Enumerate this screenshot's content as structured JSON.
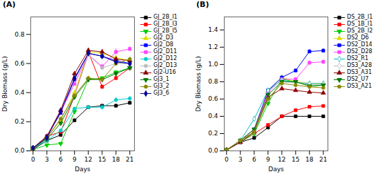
{
  "chart_data": [
    {
      "type": "line",
      "title": "(A)",
      "xlabel": "Days",
      "ylabel": "Dry Biomass (g/L)",
      "x": [
        0,
        3,
        6,
        9,
        12,
        15,
        18,
        21
      ],
      "xlim": [
        -0.5,
        22
      ],
      "xticks": [
        0,
        3,
        6,
        9,
        12,
        15,
        18,
        21
      ],
      "ylim": [
        0,
        0.92
      ],
      "yticks": [
        {
          "value": 0,
          "label": "0.0"
        },
        0.2,
        0.4,
        0.6,
        0.8
      ],
      "grid": false,
      "legend": "right",
      "series": [
        {
          "name": "GJ_2B_I1",
          "color": "#000000",
          "marker": "square",
          "values": [
            0.01,
            0.07,
            0.11,
            0.21,
            0.3,
            0.31,
            0.31,
            0.33
          ],
          "yerr": [
            0.002,
            0.004,
            0.006,
            0.01,
            0.01,
            0.012,
            0.012,
            0.012
          ]
        },
        {
          "name": "GJ_2B_I3",
          "color": "#ff0000",
          "marker": "square",
          "values": [
            0.01,
            0.1,
            0.13,
            0.38,
            0.68,
            0.44,
            0.5,
            0.57
          ],
          "yerr": [
            0.002,
            0.005,
            0.008,
            0.012,
            0.018,
            0.015,
            0.015,
            0.015
          ]
        },
        {
          "name": "GJ_2B_I5",
          "color": "#00cc00",
          "marker": "triangle-down",
          "values": [
            0.01,
            0.04,
            0.05,
            0.27,
            0.49,
            0.5,
            0.54,
            0.57
          ],
          "yerr": [
            0.002,
            0.003,
            0.004,
            0.01,
            0.012,
            0.012,
            0.015,
            0.012
          ]
        },
        {
          "name": "GJ2_D3",
          "color": "#dddd00",
          "marker": "triangle-up",
          "values": [
            0.02,
            0.09,
            0.21,
            0.4,
            0.68,
            0.67,
            0.64,
            0.62
          ],
          "yerr": [
            0.002,
            0.005,
            0.01,
            0.012,
            0.015,
            0.015,
            0.015,
            0.018
          ]
        },
        {
          "name": "GJ2_D8",
          "color": "#0000ff",
          "marker": "square",
          "values": [
            0.02,
            0.1,
            0.26,
            0.49,
            0.67,
            0.65,
            0.62,
            0.6
          ],
          "yerr": [
            0.002,
            0.005,
            0.01,
            0.012,
            0.015,
            0.015,
            0.015,
            0.015
          ]
        },
        {
          "name": "GJ2_D11",
          "color": "#ff44ff",
          "marker": "square",
          "values": [
            0.02,
            0.1,
            0.27,
            0.46,
            0.66,
            0.58,
            0.68,
            0.7
          ],
          "yerr": [
            0.002,
            0.005,
            0.01,
            0.012,
            0.015,
            0.018,
            0.022,
            0.018
          ]
        },
        {
          "name": "GJ2_D12",
          "color": "#00cccc",
          "marker": "circle",
          "values": [
            0.02,
            0.07,
            0.14,
            0.29,
            0.3,
            0.3,
            0.35,
            0.36
          ],
          "yerr": [
            0.002,
            0.004,
            0.007,
            0.01,
            0.012,
            0.018,
            0.018,
            0.015
          ]
        },
        {
          "name": "GJ2_D13",
          "color": "#bbbbbb",
          "marker": "circle",
          "values": [
            0.02,
            0.09,
            0.22,
            0.38,
            0.66,
            0.57,
            0.6,
            0.6
          ],
          "yerr": [
            0.002,
            0.005,
            0.01,
            0.012,
            0.015,
            0.015,
            0.015,
            0.015
          ]
        },
        {
          "name": "GJ2-U16",
          "color": "#8b0000",
          "marker": "triangle-up",
          "values": [
            0.02,
            0.1,
            0.28,
            0.53,
            0.69,
            0.68,
            0.63,
            0.62
          ],
          "yerr": [
            0.002,
            0.005,
            0.01,
            0.012,
            0.015,
            0.015,
            0.015,
            0.015
          ]
        },
        {
          "name": "GJ3_1",
          "color": "#007700",
          "marker": "triangle-down",
          "values": [
            0.02,
            0.08,
            0.19,
            0.37,
            0.49,
            0.49,
            0.53,
            0.57
          ],
          "yerr": [
            0.002,
            0.004,
            0.009,
            0.01,
            0.012,
            0.012,
            0.015,
            0.012
          ]
        },
        {
          "name": "GJ3_2",
          "color": "#888800",
          "marker": "circle",
          "values": [
            0.02,
            0.09,
            0.22,
            0.38,
            0.5,
            0.49,
            0.6,
            0.63
          ],
          "yerr": [
            0.002,
            0.005,
            0.01,
            0.012,
            0.015,
            0.015,
            0.015,
            0.015
          ]
        },
        {
          "name": "GJ3_6",
          "color": "#000099",
          "marker": "diamond",
          "values": [
            0.02,
            0.09,
            0.27,
            0.5,
            0.67,
            0.65,
            0.61,
            0.6
          ],
          "yerr": [
            0.002,
            0.005,
            0.01,
            0.012,
            0.015,
            0.015,
            0.015,
            0.015
          ]
        }
      ]
    },
    {
      "type": "line",
      "title": "(B)",
      "xlabel": "Days",
      "ylabel": "Dry Biomass (g/L)",
      "x": [
        0,
        3,
        6,
        9,
        12,
        15,
        18,
        21
      ],
      "xlim": [
        -0.5,
        22
      ],
      "xticks": [
        0,
        3,
        6,
        9,
        12,
        15,
        18,
        21
      ],
      "ylim": [
        0,
        1.55
      ],
      "yticks": [
        {
          "value": 0,
          "label": "0.0"
        },
        0.2,
        0.4,
        0.6,
        0.8,
        {
          "value": 1,
          "label": "1.0"
        },
        1.2,
        1.4
      ],
      "grid": false,
      "legend": "right",
      "series": [
        {
          "name": "DS_2B_I1",
          "color": "#000000",
          "marker": "square",
          "values": [
            0.01,
            0.1,
            0.15,
            0.27,
            0.4,
            0.4,
            0.4,
            0.4
          ],
          "yerr": [
            0.002,
            0.005,
            0.007,
            0.01,
            0.012,
            0.012,
            0.012,
            0.012
          ]
        },
        {
          "name": "DS_1B_I1",
          "color": "#ff0000",
          "marker": "square",
          "values": [
            0.01,
            0.1,
            0.2,
            0.3,
            0.4,
            0.47,
            0.51,
            0.52
          ],
          "yerr": [
            0.002,
            0.005,
            0.008,
            0.01,
            0.012,
            0.012,
            0.015,
            0.015
          ]
        },
        {
          "name": "DS_2B_I2",
          "color": "#00cc00",
          "marker": "triangle-down",
          "values": [
            0.01,
            0.1,
            0.2,
            0.55,
            0.83,
            0.8,
            0.75,
            0.76
          ],
          "yerr": [
            0.002,
            0.005,
            0.01,
            0.015,
            0.018,
            0.018,
            0.02,
            0.018
          ]
        },
        {
          "name": "DS2_D6",
          "color": "#dddd00",
          "marker": "triangle-up",
          "values": [
            0.01,
            0.12,
            0.22,
            0.7,
            0.85,
            0.8,
            0.78,
            0.78
          ],
          "yerr": [
            0.002,
            0.005,
            0.01,
            0.018,
            0.018,
            0.018,
            0.018,
            0.018
          ]
        },
        {
          "name": "DS2_D14",
          "color": "#0000ff",
          "marker": "square",
          "values": [
            0.01,
            0.12,
            0.25,
            0.7,
            0.85,
            0.93,
            1.15,
            1.16
          ],
          "yerr": [
            0.002,
            0.005,
            0.01,
            0.018,
            0.018,
            0.02,
            0.025,
            0.025
          ]
        },
        {
          "name": "DS2_D28",
          "color": "#ff44ff",
          "marker": "square",
          "values": [
            0.01,
            0.12,
            0.25,
            0.68,
            0.83,
            0.83,
            1.02,
            1.03
          ],
          "yerr": [
            0.002,
            0.005,
            0.01,
            0.018,
            0.018,
            0.02,
            0.025,
            0.025
          ]
        },
        {
          "name": "DS2_R1",
          "color": "#00bbbb",
          "marker": "diamond-open",
          "values": [
            0.01,
            0.12,
            0.37,
            0.7,
            0.82,
            0.79,
            0.78,
            0.78
          ],
          "yerr": [
            0.002,
            0.005,
            0.012,
            0.018,
            0.018,
            0.018,
            0.018,
            0.018
          ]
        },
        {
          "name": "DS3_A28",
          "color": "#bbbbbb",
          "marker": "diamond-open",
          "values": [
            0.01,
            0.1,
            0.22,
            0.6,
            0.8,
            0.79,
            0.77,
            0.77
          ],
          "yerr": [
            0.002,
            0.004,
            0.009,
            0.015,
            0.018,
            0.018,
            0.018,
            0.018
          ]
        },
        {
          "name": "DS3_A31",
          "color": "#8b0000",
          "marker": "triangle-up",
          "values": [
            0.01,
            0.1,
            0.22,
            0.62,
            0.72,
            0.7,
            0.68,
            0.67
          ],
          "yerr": [
            0.002,
            0.004,
            0.009,
            0.015,
            0.015,
            0.015,
            0.018,
            0.018
          ]
        },
        {
          "name": "DS2_U7",
          "color": "#007700",
          "marker": "triangle-down",
          "values": [
            0.01,
            0.12,
            0.25,
            0.65,
            0.8,
            0.8,
            0.75,
            0.76
          ],
          "yerr": [
            0.002,
            0.005,
            0.01,
            0.015,
            0.018,
            0.018,
            0.018,
            0.018
          ]
        },
        {
          "name": "DS3_A21",
          "color": "#888800",
          "marker": "circle",
          "values": [
            0.01,
            0.12,
            0.22,
            0.6,
            0.78,
            0.76,
            0.74,
            0.73
          ],
          "yerr": [
            0.002,
            0.005,
            0.01,
            0.015,
            0.018,
            0.018,
            0.018,
            0.018
          ]
        }
      ]
    }
  ]
}
